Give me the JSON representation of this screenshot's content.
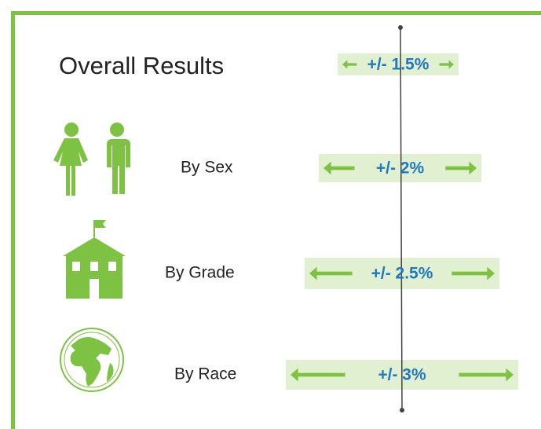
{
  "title": "Overall Results",
  "overall": {
    "margin": "+/- 1.5%"
  },
  "rows": [
    {
      "label": "By Sex",
      "margin": "+/- 2%"
    },
    {
      "label": "By Grade",
      "margin": "+/- 2.5%"
    },
    {
      "label": "By Race",
      "margin": "+/- 3%"
    }
  ]
}
